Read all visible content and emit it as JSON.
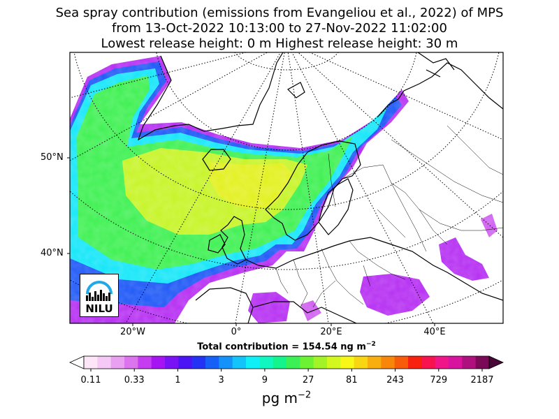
{
  "title": {
    "line1": "Sea spray contribution (emissions from Evangeliou et al., 2022) of MPS",
    "line2": "from 13-Oct-2022 10:13:00 to 27-Nov-2022 11:02:00",
    "line3": "Lowest release height: 0 m      Highest release height: 30 m"
  },
  "map": {
    "lat_labels": [
      "50°N",
      "40°N"
    ],
    "lon_labels": [
      "20°W",
      "0°",
      "20°E",
      "40°E"
    ],
    "total_label": "Total contribution = 154.54 ng m",
    "total_exp": "−2",
    "logo_text": "NILU"
  },
  "colorbar": {
    "tick_labels": [
      "0.11",
      "0.33",
      "1",
      "3",
      "9",
      "27",
      "81",
      "243",
      "729",
      "2187"
    ],
    "unit_label": "pg m",
    "unit_exp": "−2",
    "colors": [
      "#fde6f8",
      "#f6c8f5",
      "#eaa0f0",
      "#dc74ee",
      "#c63cf0",
      "#a614f4",
      "#7a12f6",
      "#4a14f4",
      "#2432f6",
      "#1660f8",
      "#1492fa",
      "#12c4fa",
      "#10eef8",
      "#10f8c0",
      "#14f48c",
      "#3af054",
      "#6cf232",
      "#a2f426",
      "#d2f81e",
      "#f8f818",
      "#f8d612",
      "#f8ae0e",
      "#f8860a",
      "#f85c0a",
      "#f8200e",
      "#f8124e",
      "#f0168a",
      "#d8149e",
      "#b0107e",
      "#7a0a58"
    ]
  },
  "colors": {
    "land_outline": "#000000",
    "grid": "#000000"
  }
}
